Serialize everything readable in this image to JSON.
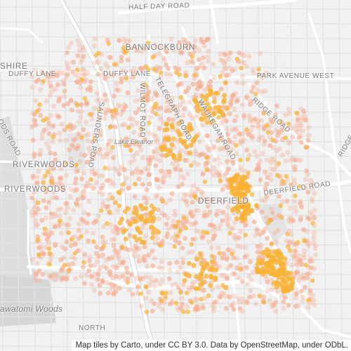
{
  "map": {
    "labels": {
      "half_day_road": "HALF DAY ROAD",
      "bannockburn": "BANNOCKBURN",
      "shire": "SHIRE",
      "duffy_lane_w": "DUFFY LANE",
      "duffy_lane_e": "DUFFY LANE",
      "park_avenue_west": "PARK AVENUE WEST",
      "telegraph_road": "TELEGRAPH ROAD",
      "wilmot_road": "WILMOT ROAD",
      "waukegan_road": "WAUKEGAN ROAD",
      "ridge_road": "RIDGE ROAD",
      "saunders_road": "SAUNDERS ROAD",
      "woods_road": "ODS ROAD",
      "lake_eleanor": "Lake Eleanor",
      "riverwoods_1": "RIVERWOODS",
      "riverwoods_2": "RIVERWOODS",
      "deerfield": "DEERFIELD",
      "deerfield_road": "DEERFIELD ROAD",
      "north_label": "NORTH",
      "potawatomi_woods": "awatomi Woods"
    },
    "attribution": "Map tiles by Carto, under CC BY 3.0. Data by OpenStreetMap, under ODbL.",
    "colors": {
      "background": "#f1f1f1",
      "road_major": "#ffffff",
      "road_minor": "#e2e2e2",
      "park": "#dcdcdc",
      "point_low": "#f7a889",
      "point_high": "#f9b233"
    }
  }
}
